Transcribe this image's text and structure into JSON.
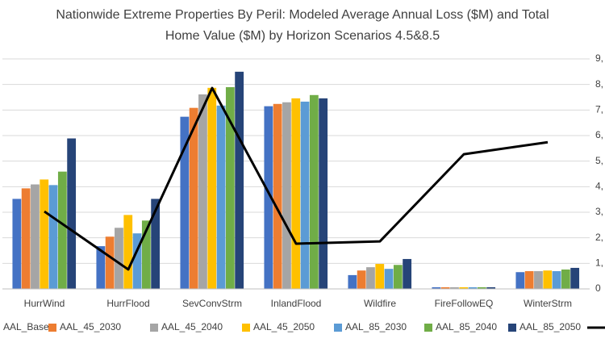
{
  "chart_data": {
    "type": "bar",
    "title": "Nationwide Extreme Properties By Peril: Modeled Average Annual Loss ($M) and Total Home Value ($M) by Horizon Scenarios 4.5&8.5",
    "categories": [
      "HurrWind",
      "HurrFlood",
      "SevConvStrm",
      "InlandFlood",
      "Wildfire",
      "FireFollowEQ",
      "WinterStrm"
    ],
    "ylim": [
      0,
      70
    ],
    "y2lim": [
      0,
      9000
    ],
    "y2ticks": [
      {
        "value": 0,
        "label": "0"
      },
      {
        "value": 1000,
        "label": "1,"
      },
      {
        "value": 2000,
        "label": "2,"
      },
      {
        "value": 3000,
        "label": "3,"
      },
      {
        "value": 4000,
        "label": "4,"
      },
      {
        "value": 5000,
        "label": "5,"
      },
      {
        "value": 6000,
        "label": "6,"
      },
      {
        "value": 7000,
        "label": "7,"
      },
      {
        "value": 8000,
        "label": "8,"
      },
      {
        "value": 9000,
        "label": "9,"
      }
    ],
    "grid": true,
    "series": [
      {
        "name": "AAL_Base",
        "color": "#4472c4",
        "values": [
          27.4,
          13,
          52.4,
          55.6,
          4.2,
          0.5,
          5.1
        ]
      },
      {
        "name": "AAL_45_2030",
        "color": "#ed7d31",
        "values": [
          30.6,
          15.9,
          55.1,
          56.3,
          5.6,
          0.5,
          5.4
        ]
      },
      {
        "name": "AAL_45_2040",
        "color": "#a5a5a5",
        "values": [
          31.8,
          18.6,
          59.2,
          56.8,
          6.6,
          0.5,
          5.4
        ]
      },
      {
        "name": "AAL_45_2050",
        "color": "#ffc000",
        "values": [
          33.3,
          22.5,
          61.2,
          58,
          7.6,
          0.5,
          5.6
        ]
      },
      {
        "name": "AAL_85_2030",
        "color": "#5b9bd5",
        "values": [
          31.6,
          16.9,
          55.8,
          57,
          6.1,
          0.5,
          5.4
        ]
      },
      {
        "name": "AAL_85_2040",
        "color": "#70ad47",
        "values": [
          35.7,
          20.8,
          61.4,
          59,
          7.3,
          0.5,
          5.9
        ]
      },
      {
        "name": "AAL_85_2050",
        "color": "#264478",
        "values": [
          45.8,
          27.4,
          66.1,
          58,
          9.1,
          0.5,
          6.4
        ]
      },
      {
        "type": "line",
        "axis": "y2",
        "color": "#000000",
        "values": [
          3030,
          760,
          7860,
          1770,
          1860,
          5270,
          5740
        ]
      }
    ]
  }
}
